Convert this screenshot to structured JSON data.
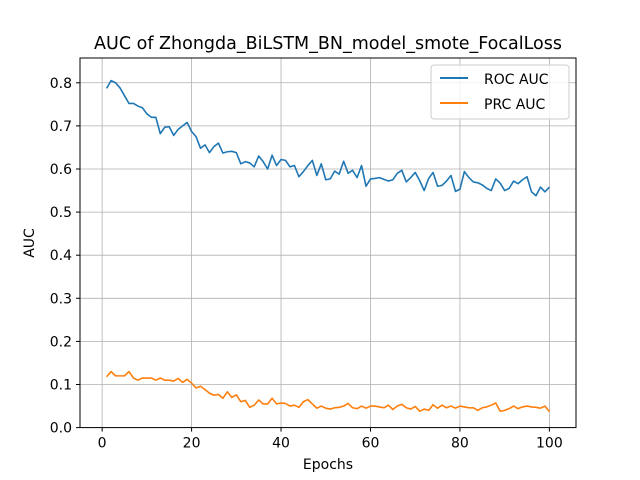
{
  "chart_data": {
    "type": "line",
    "title": "AUC of Zhongda_BiLSTM_BN_model_smote_FocalLoss",
    "xlabel": "Epochs",
    "ylabel": "AUC",
    "xlim": [
      -4.95,
      105.95
    ],
    "ylim": [
      0.0,
      0.8575
    ],
    "xticks": [
      0,
      20,
      40,
      60,
      80,
      100
    ],
    "xtick_labels": [
      "0",
      "20",
      "40",
      "60",
      "80",
      "100"
    ],
    "yticks": [
      0.0,
      0.1,
      0.2,
      0.3,
      0.4,
      0.5,
      0.6,
      0.7,
      0.8
    ],
    "ytick_labels": [
      "0.0",
      "0.1",
      "0.2",
      "0.3",
      "0.4",
      "0.5",
      "0.6",
      "0.7",
      "0.8"
    ],
    "grid": true,
    "legend_position": "upper right",
    "x": [
      1,
      2,
      3,
      4,
      5,
      6,
      7,
      8,
      9,
      10,
      11,
      12,
      13,
      14,
      15,
      16,
      17,
      18,
      19,
      20,
      21,
      22,
      23,
      24,
      25,
      26,
      27,
      28,
      29,
      30,
      31,
      32,
      33,
      34,
      35,
      36,
      37,
      38,
      39,
      40,
      41,
      42,
      43,
      44,
      45,
      46,
      47,
      48,
      49,
      50,
      51,
      52,
      53,
      54,
      55,
      56,
      57,
      58,
      59,
      60,
      61,
      62,
      63,
      64,
      65,
      66,
      67,
      68,
      69,
      70,
      71,
      72,
      73,
      74,
      75,
      76,
      77,
      78,
      79,
      80,
      81,
      82,
      83,
      84,
      85,
      86,
      87,
      88,
      89,
      90,
      91,
      92,
      93,
      94,
      95,
      96,
      97,
      98,
      99,
      100
    ],
    "series": [
      {
        "name": "ROC AUC",
        "color": "#1f77b4",
        "values": [
          0.787,
          0.805,
          0.8,
          0.788,
          0.77,
          0.752,
          0.752,
          0.746,
          0.742,
          0.728,
          0.72,
          0.72,
          0.682,
          0.697,
          0.698,
          0.678,
          0.692,
          0.7,
          0.708,
          0.687,
          0.675,
          0.648,
          0.656,
          0.638,
          0.652,
          0.66,
          0.637,
          0.64,
          0.641,
          0.638,
          0.612,
          0.617,
          0.614,
          0.605,
          0.63,
          0.617,
          0.6,
          0.632,
          0.608,
          0.622,
          0.62,
          0.605,
          0.608,
          0.582,
          0.594,
          0.608,
          0.62,
          0.585,
          0.612,
          0.575,
          0.577,
          0.595,
          0.588,
          0.618,
          0.59,
          0.597,
          0.58,
          0.608,
          0.56,
          0.577,
          0.578,
          0.58,
          0.576,
          0.572,
          0.575,
          0.59,
          0.597,
          0.57,
          0.58,
          0.592,
          0.573,
          0.55,
          0.578,
          0.592,
          0.56,
          0.562,
          0.572,
          0.585,
          0.548,
          0.553,
          0.594,
          0.58,
          0.57,
          0.568,
          0.563,
          0.555,
          0.55,
          0.577,
          0.567,
          0.55,
          0.555,
          0.572,
          0.566,
          0.575,
          0.582,
          0.547,
          0.538,
          0.558,
          0.547,
          0.558
        ]
      },
      {
        "name": "PRC AUC",
        "color": "#ff7f0e",
        "values": [
          0.118,
          0.13,
          0.12,
          0.12,
          0.12,
          0.13,
          0.115,
          0.11,
          0.115,
          0.115,
          0.115,
          0.11,
          0.115,
          0.11,
          0.11,
          0.108,
          0.114,
          0.105,
          0.112,
          0.103,
          0.092,
          0.096,
          0.088,
          0.08,
          0.075,
          0.077,
          0.068,
          0.083,
          0.07,
          0.076,
          0.06,
          0.063,
          0.047,
          0.052,
          0.064,
          0.055,
          0.055,
          0.068,
          0.055,
          0.057,
          0.056,
          0.05,
          0.052,
          0.047,
          0.06,
          0.065,
          0.055,
          0.045,
          0.05,
          0.045,
          0.043,
          0.046,
          0.047,
          0.05,
          0.056,
          0.046,
          0.044,
          0.05,
          0.045,
          0.05,
          0.05,
          0.048,
          0.046,
          0.052,
          0.042,
          0.05,
          0.054,
          0.046,
          0.043,
          0.049,
          0.038,
          0.043,
          0.04,
          0.053,
          0.045,
          0.052,
          0.046,
          0.05,
          0.045,
          0.05,
          0.048,
          0.046,
          0.046,
          0.04,
          0.046,
          0.048,
          0.052,
          0.057,
          0.038,
          0.04,
          0.044,
          0.05,
          0.044,
          0.048,
          0.05,
          0.048,
          0.047,
          0.045,
          0.05,
          0.037
        ]
      }
    ]
  }
}
